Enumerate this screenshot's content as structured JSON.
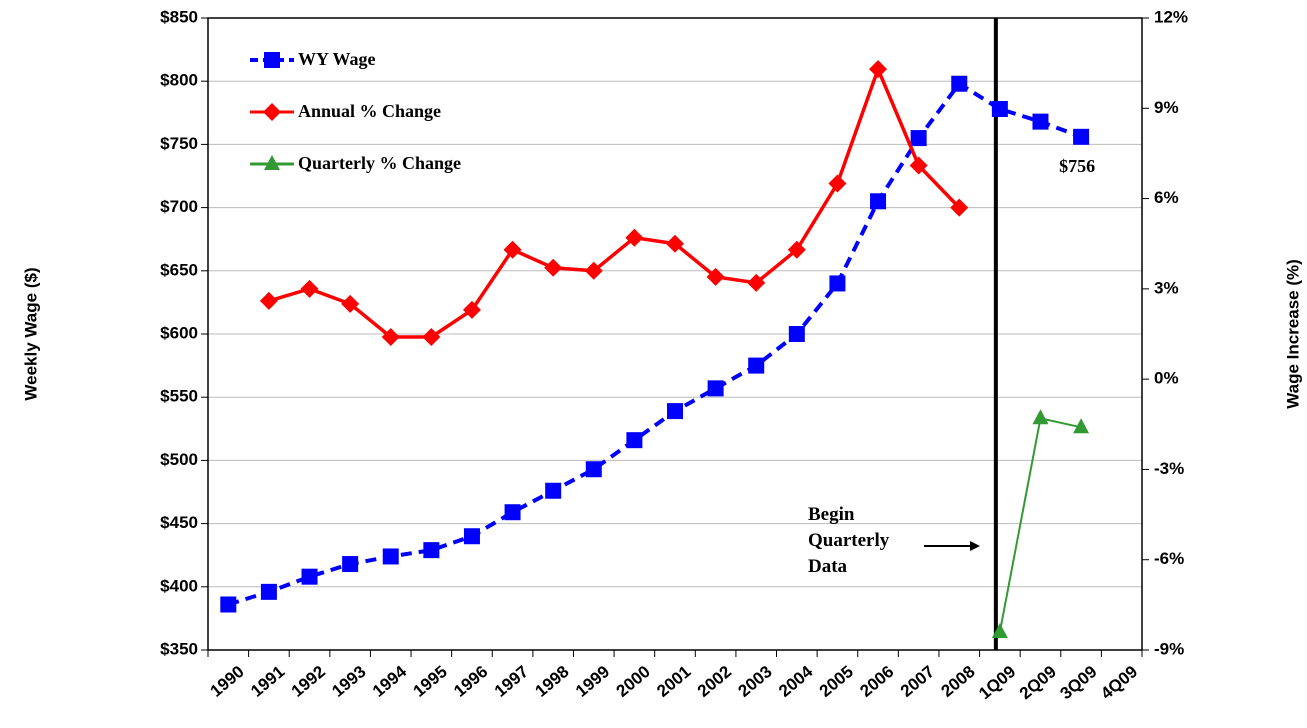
{
  "chart_data": {
    "type": "line",
    "ylabel": "Weekly Wage ($)",
    "y2label": "Wage Increase (%)",
    "categories": [
      "1990",
      "1991",
      "1992",
      "1993",
      "1994",
      "1995",
      "1996",
      "1997",
      "1998",
      "1999",
      "2000",
      "2001",
      "2002",
      "2003",
      "2004",
      "2005",
      "2006",
      "2007",
      "2008",
      "1Q09",
      "2Q09",
      "3Q09",
      "4Q09"
    ],
    "series": [
      {
        "name": "WY Wage",
        "color": "#0000ff",
        "marker": "square",
        "dashed": true,
        "values": [
          386,
          396,
          408,
          418,
          424,
          429,
          440,
          459,
          476,
          493,
          516,
          539,
          557,
          575,
          600,
          640,
          705,
          755,
          798,
          778,
          768,
          756,
          null
        ]
      },
      {
        "name": "Annual % Change",
        "color": "#ff0000",
        "marker": "diamond",
        "axis": "y2",
        "values": [
          null,
          2.6,
          3.0,
          2.5,
          1.4,
          1.4,
          2.3,
          4.3,
          3.7,
          3.6,
          4.7,
          4.5,
          3.4,
          3.2,
          4.3,
          6.5,
          10.3,
          7.1,
          5.7,
          null,
          null,
          null,
          null
        ]
      },
      {
        "name": "Quarterly % Change",
        "color": "#339933",
        "marker": "triangle",
        "axis": "y2",
        "values": [
          null,
          null,
          null,
          null,
          null,
          null,
          null,
          null,
          null,
          null,
          null,
          null,
          null,
          null,
          null,
          null,
          null,
          null,
          null,
          -8.4,
          -1.3,
          -1.6,
          null
        ]
      }
    ],
    "ylim": [
      350,
      850
    ],
    "yticks": [
      {
        "value": 350,
        "label": "$350"
      },
      {
        "value": 400,
        "label": "$400"
      },
      {
        "value": 450,
        "label": "$450"
      },
      {
        "value": 500,
        "label": "$500"
      },
      {
        "value": 550,
        "label": "$550"
      },
      {
        "value": 600,
        "label": "$600"
      },
      {
        "value": 650,
        "label": "$650"
      },
      {
        "value": 700,
        "label": "$700"
      },
      {
        "value": 750,
        "label": "$750"
      },
      {
        "value": 800,
        "label": "$800"
      },
      {
        "value": 850,
        "label": "$850"
      }
    ],
    "y2lim": [
      -9,
      12
    ],
    "y2ticks": [
      {
        "value": -9,
        "label": "-9%"
      },
      {
        "value": -6,
        "label": "-6%"
      },
      {
        "value": -3,
        "label": "-3%"
      },
      {
        "value": 0,
        "label": "0%"
      },
      {
        "value": 3,
        "label": "3%"
      },
      {
        "value": 6,
        "label": "6%"
      },
      {
        "value": 9,
        "label": "9%"
      },
      {
        "value": 12,
        "label": "12%"
      }
    ],
    "grid": true,
    "legend": "upper left",
    "annotations": [
      {
        "text": "$756"
      },
      {
        "text": "Begin\nQuarterly\nData"
      }
    ]
  }
}
